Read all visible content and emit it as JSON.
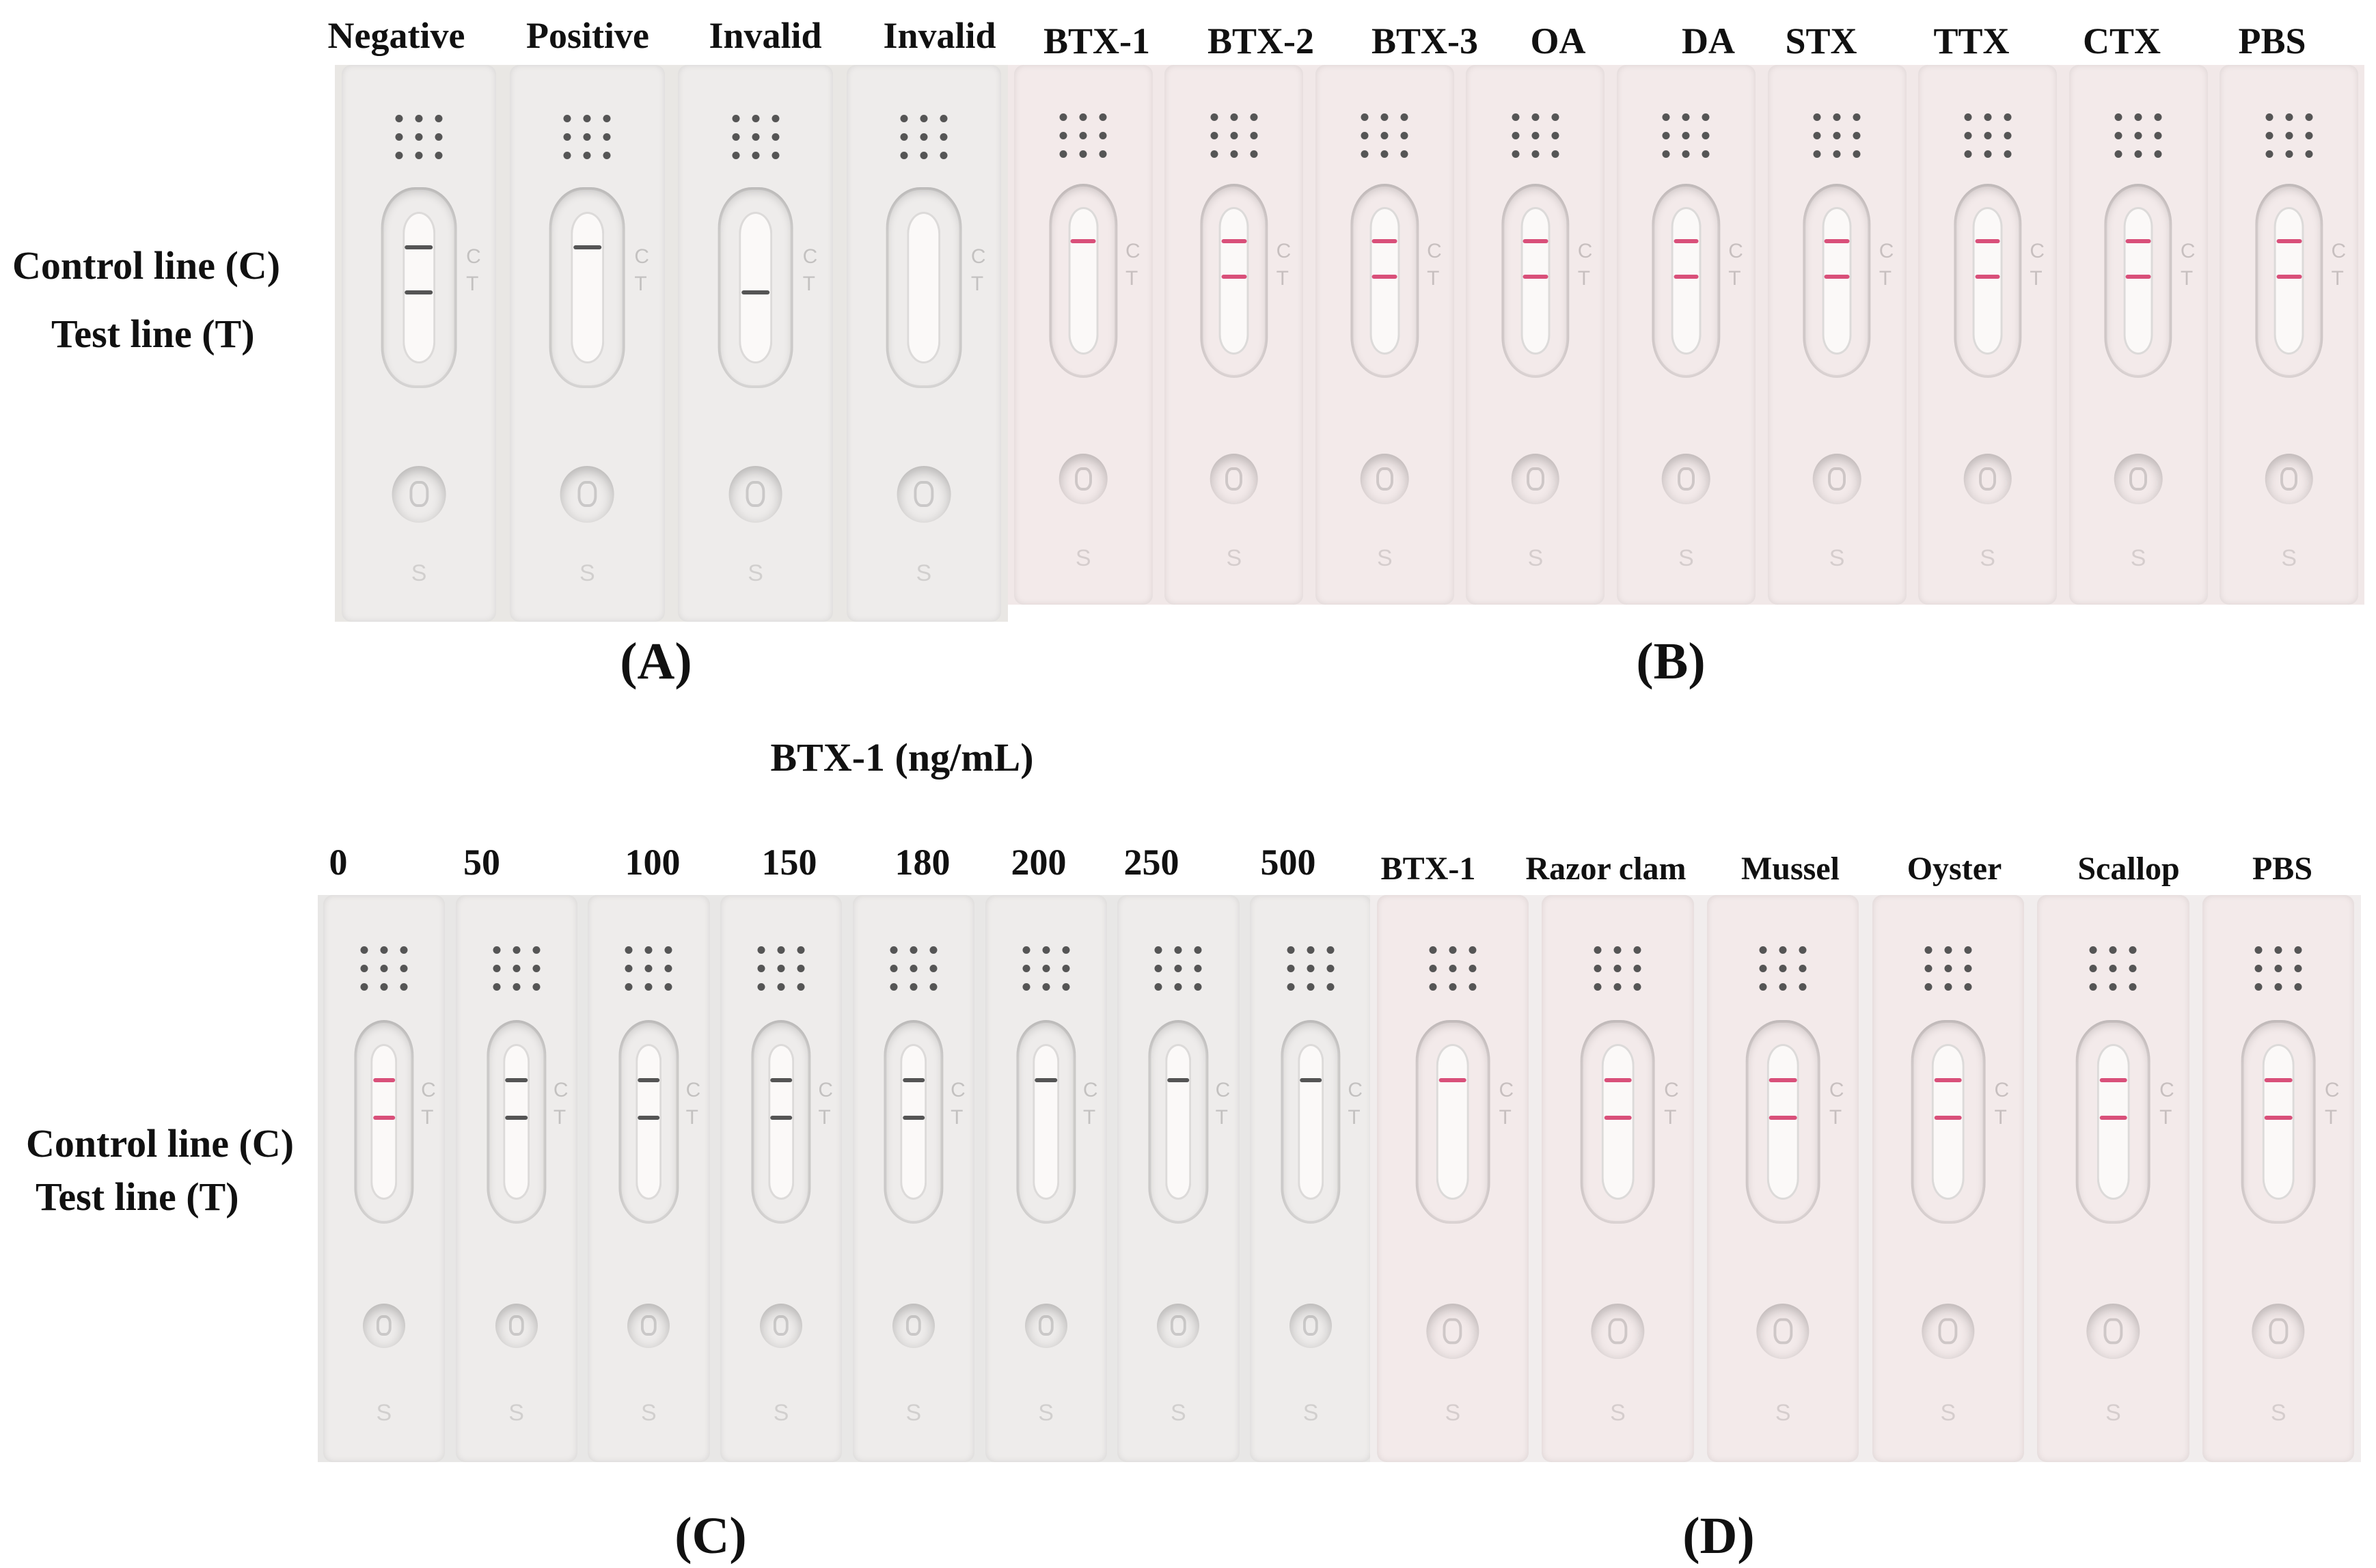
{
  "panel_a": {
    "letter": "(A)",
    "strip_labels": [
      "Negative",
      "Positive",
      "Invalid",
      "Invalid"
    ],
    "control_label": "Control line (C)",
    "test_label": "Test line    (T)"
  },
  "panel_b": {
    "letter": "(B)",
    "strip_labels": [
      "BTX-1",
      "BTX-2",
      "BTX-3",
      "OA",
      "DA",
      "STX",
      "TTX",
      "CTX",
      "PBS"
    ]
  },
  "panel_c": {
    "letter": "(C)",
    "header": "BTX-1 (ng/mL)",
    "strip_labels": [
      "0",
      "50",
      "100",
      "150",
      "180",
      "200",
      "250",
      "500"
    ],
    "control_label": "Control line (C)",
    "test_label": "Test line     (T)"
  },
  "panel_d": {
    "letter": "(D)",
    "strip_labels": [
      "BTX-1",
      "Razor clam",
      "Mussel",
      "Oyster",
      "Scallop",
      "PBS"
    ]
  },
  "colors": {
    "gray_strip": "#eeeceb",
    "pink_strip": "#f3eaea",
    "dark_line": "#555555",
    "red_line": "#d9507a"
  }
}
